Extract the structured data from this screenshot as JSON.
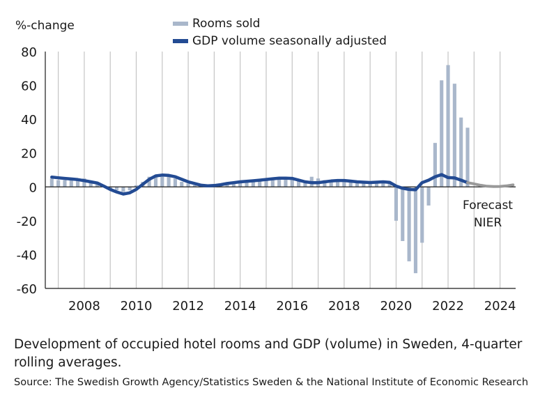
{
  "chart_data": {
    "type": "bar+line",
    "title": "Development of occupied hotel rooms and GDP (volume) in Sweden, 4-quarter rolling averages.",
    "source": "Source: The Swedish Growth Agency/Statistics Sweden & the National Institute of Economic Research",
    "ylabel": "%-change",
    "xlabel": "",
    "ylim": [
      -60,
      80
    ],
    "yticks": [
      80,
      60,
      40,
      20,
      0,
      -20,
      -40,
      -60
    ],
    "xlim": [
      2006.5,
      2024.6
    ],
    "xticks": [
      2008,
      2010,
      2012,
      2014,
      2016,
      2018,
      2020,
      2022,
      2024
    ],
    "grid": "vertical",
    "legend_position": "top",
    "legend": [
      {
        "name": "Rooms sold",
        "color": "#a9b7cb",
        "kind": "bar"
      },
      {
        "name": "GDP volume seasonally adjusted",
        "color": "#234b93",
        "kind": "line"
      }
    ],
    "annotation": "Forecast\nNIER",
    "series": [
      {
        "name": "Rooms sold",
        "type": "bar",
        "color": "#a9b7cb",
        "x": [
          2006.75,
          2007.0,
          2007.25,
          2007.5,
          2007.75,
          2008.0,
          2008.25,
          2008.5,
          2008.75,
          2009.0,
          2009.25,
          2009.5,
          2009.75,
          2010.0,
          2010.25,
          2010.5,
          2010.75,
          2011.0,
          2011.25,
          2011.5,
          2011.75,
          2012.0,
          2012.25,
          2012.5,
          2012.75,
          2013.0,
          2013.25,
          2013.5,
          2013.75,
          2014.0,
          2014.25,
          2014.5,
          2014.75,
          2015.0,
          2015.25,
          2015.5,
          2015.75,
          2016.0,
          2016.25,
          2016.5,
          2016.75,
          2017.0,
          2017.25,
          2017.5,
          2017.75,
          2018.0,
          2018.25,
          2018.5,
          2018.75,
          2019.0,
          2019.25,
          2019.5,
          2019.75,
          2020.0,
          2020.25,
          2020.5,
          2020.75,
          2021.0,
          2021.25,
          2021.5,
          2021.75,
          2022.0,
          2022.25,
          2022.5,
          2022.75
        ],
        "values": [
          5,
          4,
          4,
          4,
          4,
          5,
          3,
          2,
          1,
          -1,
          -2,
          -3,
          -2,
          1,
          3,
          6,
          7,
          6,
          6,
          5,
          3,
          2,
          1,
          0,
          1,
          1,
          1,
          2,
          2,
          3,
          3,
          3,
          4,
          4,
          4,
          5,
          5,
          5,
          4,
          3,
          6,
          5,
          4,
          3,
          3,
          3,
          3,
          3,
          3,
          3,
          3,
          3,
          2,
          -20,
          -32,
          -44,
          -51,
          -33,
          -11,
          26,
          63,
          72,
          61,
          41,
          35
        ]
      },
      {
        "name": "GDP volume seasonally adjusted",
        "type": "line",
        "color": "#234b93",
        "x": [
          2006.75,
          2007.0,
          2007.25,
          2007.5,
          2007.75,
          2008.0,
          2008.25,
          2008.5,
          2008.75,
          2009.0,
          2009.25,
          2009.5,
          2009.75,
          2010.0,
          2010.25,
          2010.5,
          2010.75,
          2011.0,
          2011.25,
          2011.5,
          2011.75,
          2012.0,
          2012.25,
          2012.5,
          2012.75,
          2013.0,
          2013.25,
          2013.5,
          2013.75,
          2014.0,
          2014.25,
          2014.5,
          2014.75,
          2015.0,
          2015.25,
          2015.5,
          2015.75,
          2016.0,
          2016.25,
          2016.5,
          2016.75,
          2017.0,
          2017.25,
          2017.5,
          2017.75,
          2018.0,
          2018.25,
          2018.5,
          2018.75,
          2019.0,
          2019.25,
          2019.5,
          2019.75,
          2020.0,
          2020.25,
          2020.5,
          2020.75,
          2021.0,
          2021.25,
          2021.5,
          2021.75,
          2022.0,
          2022.25,
          2022.5,
          2022.75
        ],
        "values": [
          5.8,
          5.4,
          5.0,
          4.7,
          4.3,
          3.7,
          3.0,
          2.3,
          0.5,
          -1.5,
          -3.0,
          -4.2,
          -3.5,
          -1.5,
          1.5,
          4.5,
          6.5,
          7.0,
          6.8,
          6.0,
          4.5,
          3.0,
          2.0,
          1.0,
          0.6,
          0.8,
          1.3,
          2.0,
          2.5,
          3.0,
          3.3,
          3.6,
          4.0,
          4.4,
          4.8,
          5.2,
          5.2,
          5.0,
          4.0,
          3.0,
          2.5,
          2.5,
          3.0,
          3.5,
          3.8,
          3.8,
          3.4,
          3.0,
          2.8,
          2.6,
          2.8,
          3.0,
          2.7,
          0.5,
          -0.8,
          -1.5,
          -1.7,
          2.5,
          4.0,
          6.0,
          7.3,
          5.5,
          5.3,
          4.0,
          2.5
        ]
      },
      {
        "name": "GDP forecast (NIER)",
        "type": "line",
        "color": "#999999",
        "x": [
          2022.75,
          2023.0,
          2023.25,
          2023.5,
          2023.75,
          2024.0,
          2024.25,
          2024.5
        ],
        "values": [
          2.5,
          1.8,
          1.0,
          0.4,
          0.2,
          0.3,
          0.6,
          1.2
        ]
      }
    ]
  }
}
